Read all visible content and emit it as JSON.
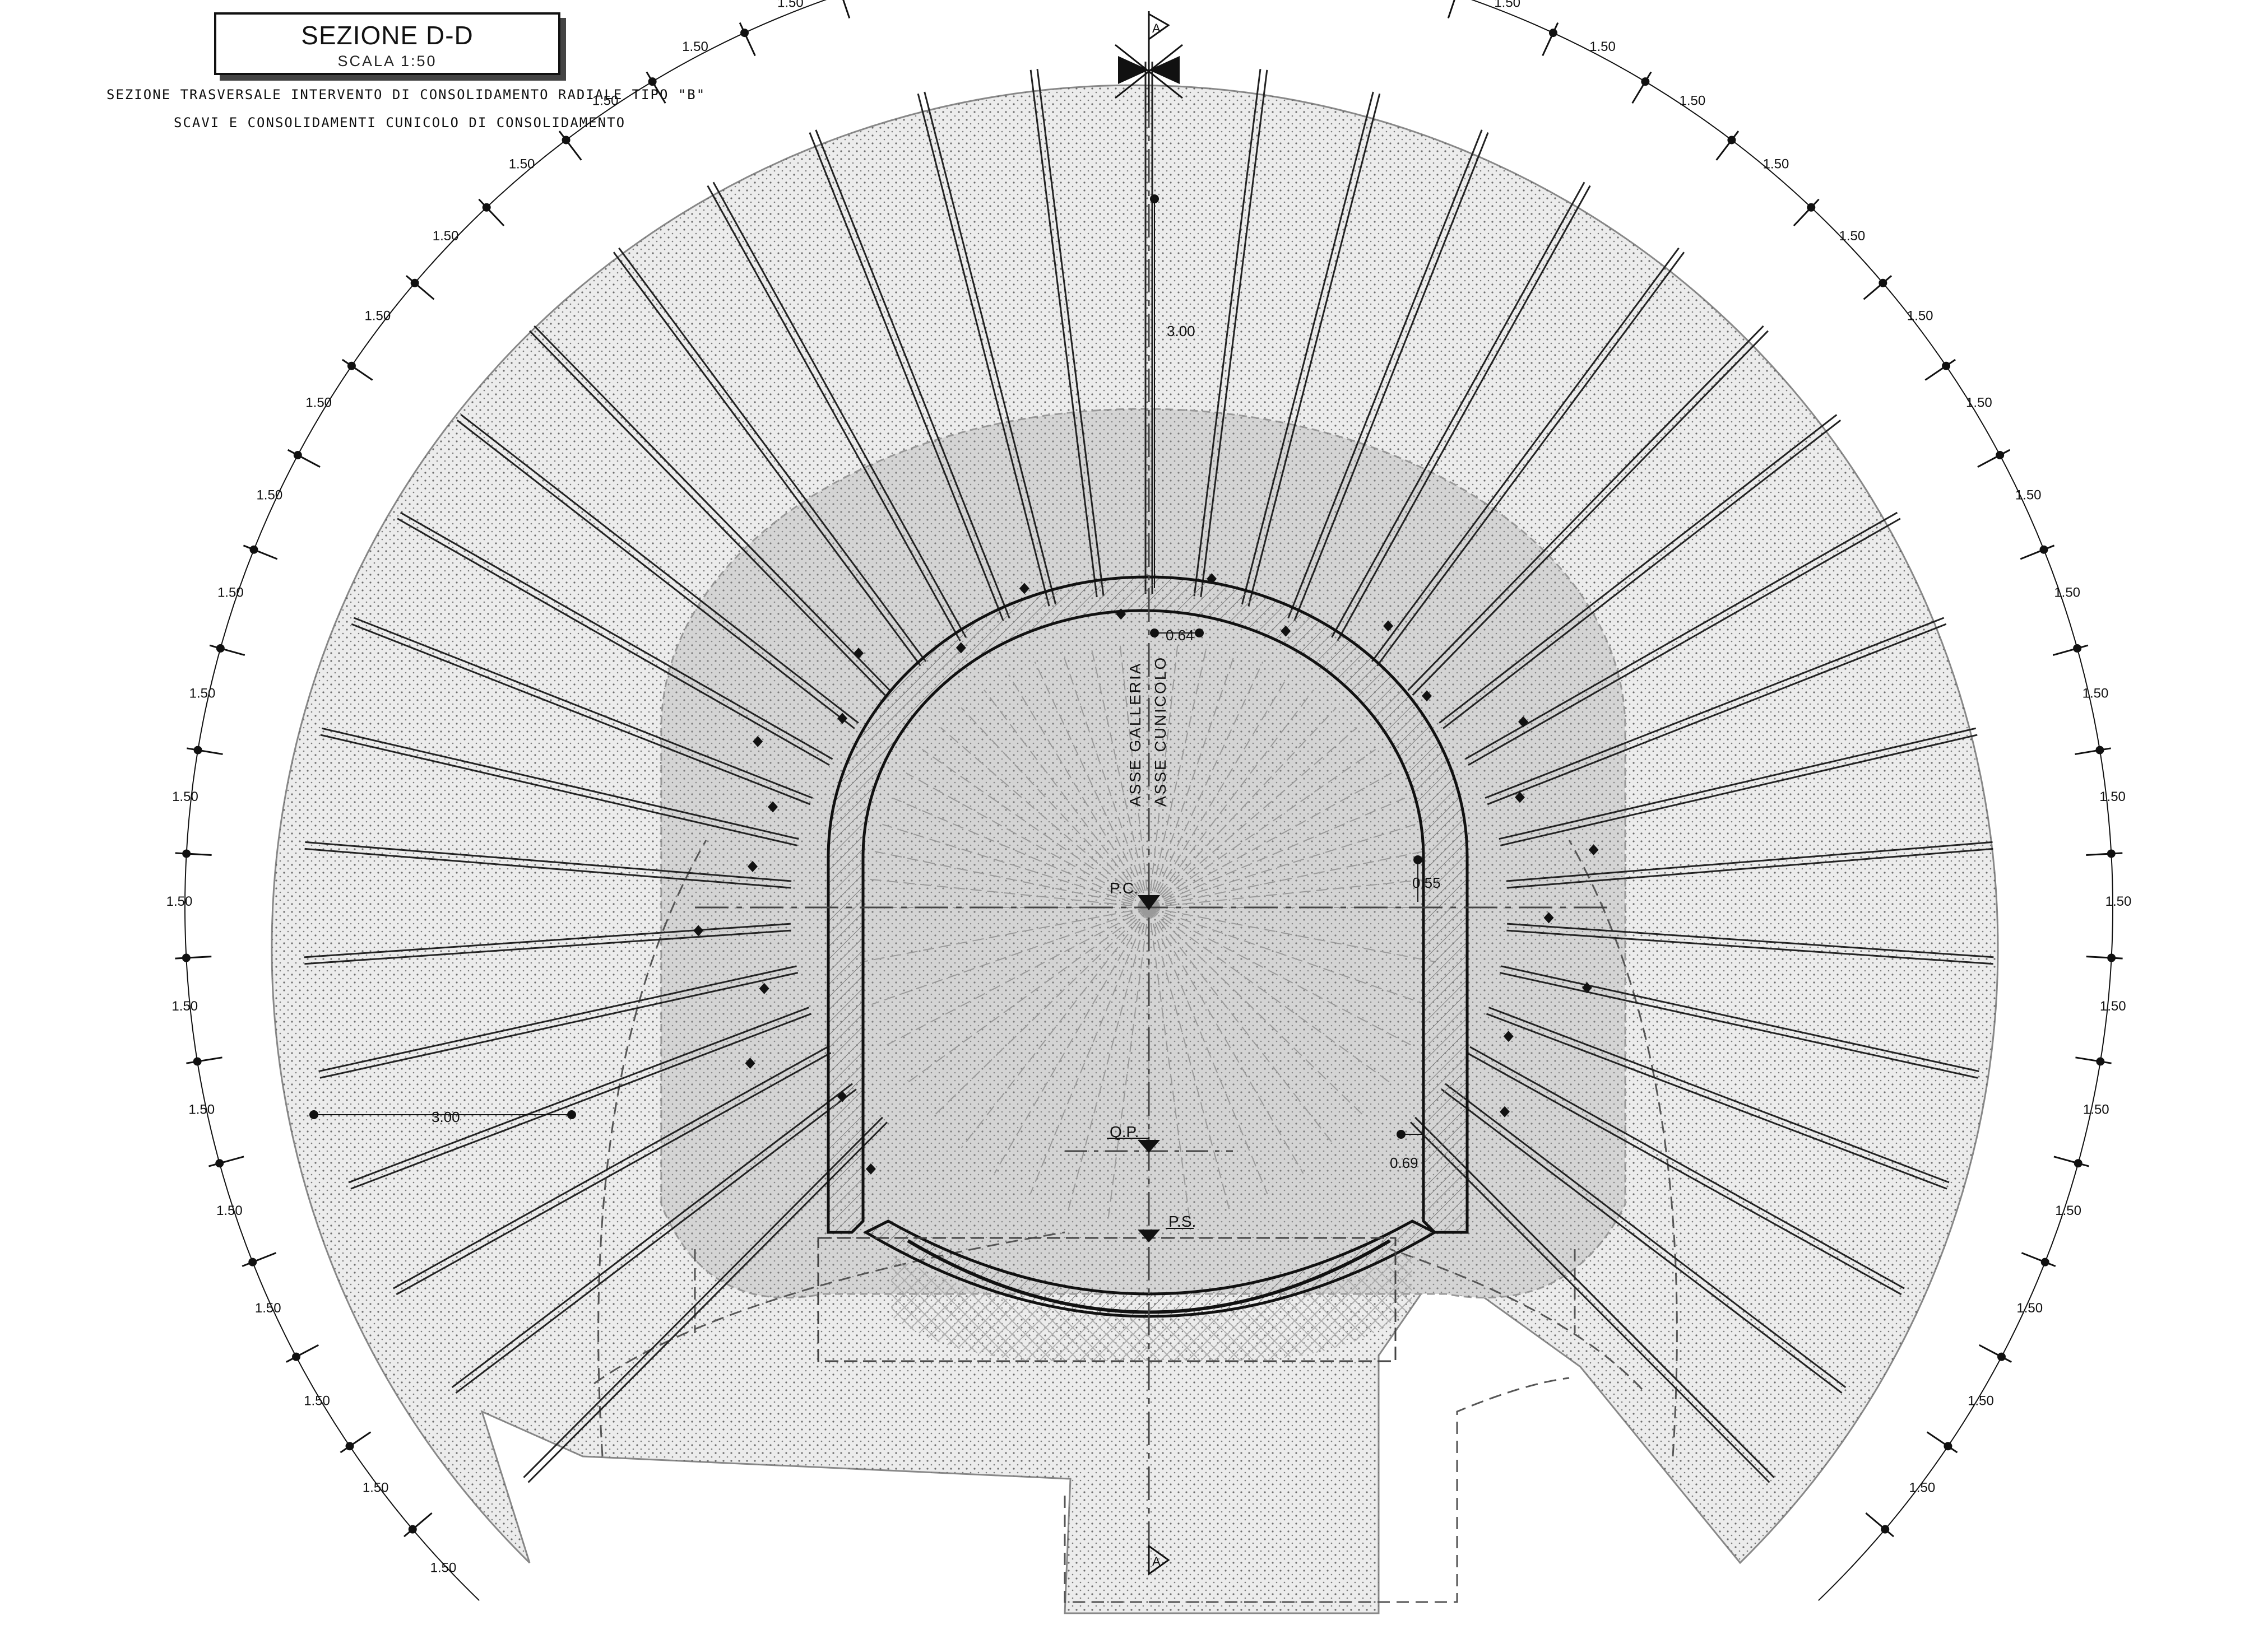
{
  "title": {
    "main": "SEZIONE D-D",
    "scale": "SCALA 1:50"
  },
  "subtitle": {
    "line1": "SEZIONE TRASVERSALE INTERVENTO DI CONSOLIDAMENTO RADIALE TIPO \"B\"",
    "line2": "SCAVI E CONSOLIDAMENTI CUNICOLO DI CONSOLIDAMENTO"
  },
  "section_markers": {
    "top": "A",
    "bottom": "A"
  },
  "labels": {
    "axis_tunnel": "ASSE GALLERIA",
    "axis_cunicolo": "ASSE CUNICOLO",
    "pc": "P.C.",
    "qp": "Q.P.",
    "ps": "P.S."
  },
  "dimensions": {
    "bolt_spacing": "1.50",
    "bolt_length_top": "3.00",
    "bolt_length_left": "3.00",
    "crown_offset": "0.64",
    "wall_offset": "0.55",
    "invert_offset": "0.69"
  },
  "colors": {
    "line": "#111111",
    "ring_fill": "#e6e6e6",
    "inner_ring_fill": "#cfcfcf",
    "lining_fill": "#f3f3f3"
  }
}
